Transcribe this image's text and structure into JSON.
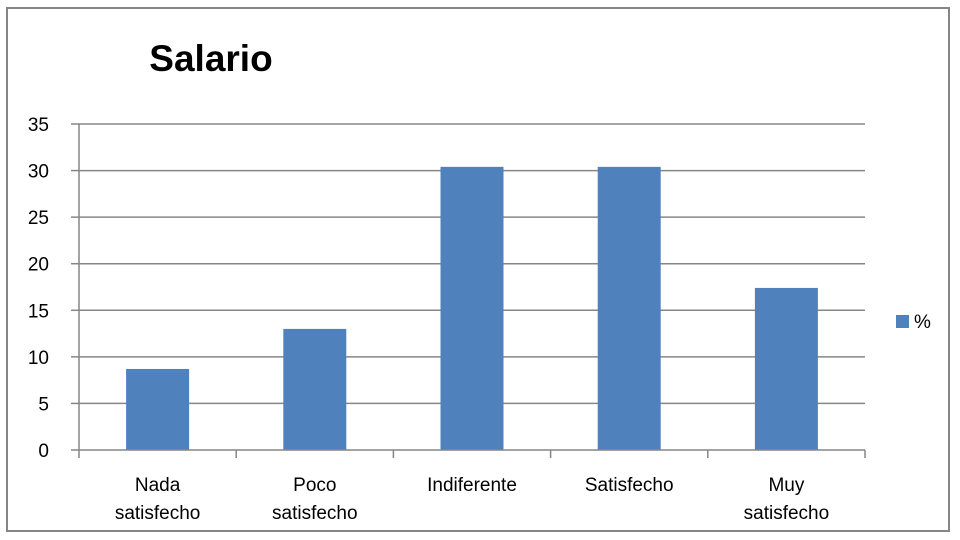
{
  "chart_data": {
    "type": "bar",
    "title": "Salario",
    "categories": [
      [
        "Nada",
        "satisfecho"
      ],
      [
        "Poco",
        "satisfecho"
      ],
      [
        "Indiferente"
      ],
      [
        "Satisfecho"
      ],
      [
        "Muy",
        "satisfecho"
      ]
    ],
    "series": [
      {
        "name": "%",
        "values": [
          8.7,
          13.0,
          30.4,
          30.4,
          17.4
        ],
        "color": "#4f81bd"
      }
    ],
    "yticks": [
      "0",
      "5",
      "10",
      "15",
      "20",
      "25",
      "30",
      "35"
    ],
    "ylim": [
      0,
      35
    ],
    "xlabel": "",
    "ylabel": "",
    "grid": true,
    "gridline_color": "#868686",
    "legend_position": "right"
  }
}
